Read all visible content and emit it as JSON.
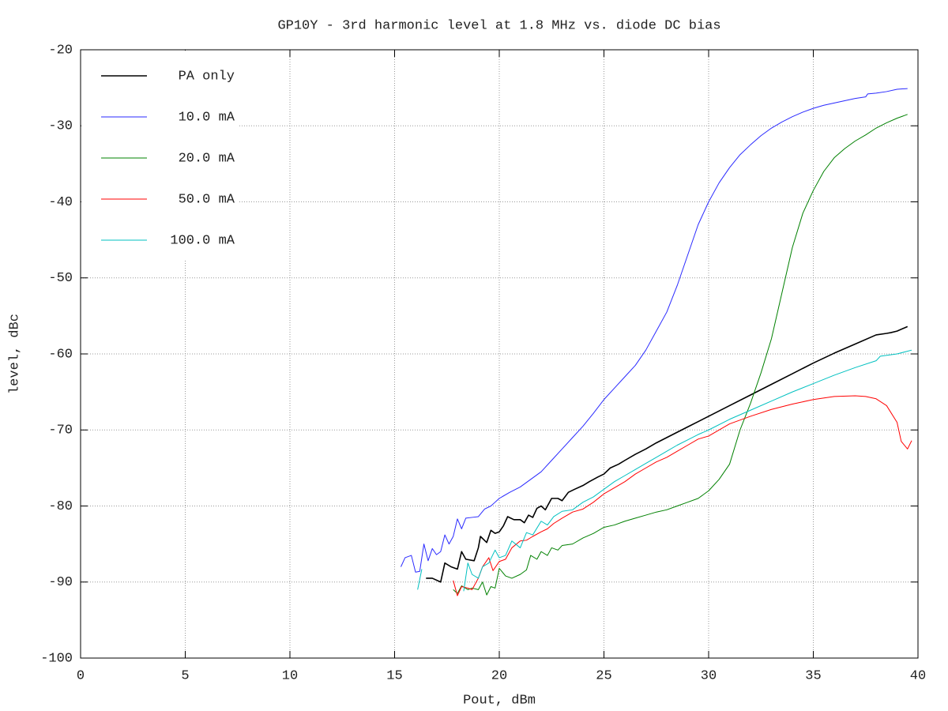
{
  "chart_data": {
    "type": "line",
    "title": "GP10Y - 3rd harmonic level at 1.8 MHz vs. diode DC bias",
    "x_label": "Pout, dBm",
    "y_label": "level, dBc",
    "xlim": [
      0,
      40
    ],
    "xticks": [
      0,
      5,
      10,
      15,
      20,
      25,
      30,
      35,
      40
    ],
    "ylim": [
      -100,
      -20
    ],
    "yticks": [
      -100,
      -90,
      -80,
      -70,
      -60,
      -50,
      -40,
      -30,
      -20
    ],
    "grid": true,
    "legend": "top-left",
    "series": [
      {
        "name": "PA only",
        "color": "#000000",
        "x": [
          16.5,
          16.8,
          17.2,
          17.4,
          17.7,
          18,
          18.2,
          18.4,
          18.8,
          19,
          19.1,
          19.4,
          19.6,
          19.8,
          20,
          20.2,
          20.4,
          20.7,
          21,
          21.2,
          21.4,
          21.6,
          21.8,
          22,
          22.2,
          22.5,
          22.8,
          23,
          23.3,
          23.6,
          24,
          24.3,
          24.7,
          25,
          25.3,
          25.7,
          26,
          26.5,
          27,
          27.5,
          28,
          28.5,
          29,
          29.5,
          30,
          31,
          32,
          33,
          34,
          35,
          36,
          37,
          38,
          38.5,
          38.7,
          39,
          39.5
        ],
        "values": [
          -89.5,
          -89.5,
          -90,
          -87.5,
          -88,
          -88.3,
          -86,
          -87,
          -87.2,
          -85.5,
          -84,
          -84.8,
          -83.2,
          -83.6,
          -83.4,
          -82.6,
          -81.4,
          -81.8,
          -81.8,
          -82.2,
          -81.2,
          -81.5,
          -80.3,
          -80,
          -80.5,
          -79,
          -79,
          -79.3,
          -78.2,
          -77.8,
          -77.3,
          -76.8,
          -76.2,
          -75.8,
          -75,
          -74.5,
          -74,
          -73.2,
          -72.5,
          -71.7,
          -71,
          -70.3,
          -69.6,
          -68.9,
          -68.2,
          -66.8,
          -65.4,
          -64,
          -62.6,
          -61.2,
          -59.9,
          -58.7,
          -57.5,
          -57.3,
          -57.2,
          -57,
          -56.4
        ]
      },
      {
        "name": "10.0 mA",
        "color": "#2a2aff",
        "x": [
          15.3,
          15.5,
          15.8,
          16,
          16.2,
          16.4,
          16.6,
          16.8,
          17,
          17.2,
          17.4,
          17.6,
          17.8,
          18,
          18.2,
          18.4,
          18.7,
          19,
          19.3,
          19.6,
          19.8,
          20,
          20.5,
          21,
          21.5,
          22,
          22.5,
          23,
          23.5,
          24,
          24.5,
          25,
          25.5,
          26,
          26.5,
          27,
          27.5,
          28,
          28.5,
          29,
          29.5,
          30,
          30.5,
          31,
          31.5,
          32,
          32.5,
          33,
          33.5,
          34,
          34.5,
          35,
          35.5,
          36,
          36.5,
          37,
          37.5,
          37.6,
          38,
          38.5,
          39,
          39.5
        ],
        "values": [
          -88,
          -86.8,
          -86.5,
          -88.7,
          -88.6,
          -85,
          -87.2,
          -85.6,
          -86.4,
          -86,
          -83.8,
          -85,
          -84,
          -81.7,
          -83,
          -81.6,
          -81.5,
          -81.4,
          -80.4,
          -80,
          -79.5,
          -79,
          -78.2,
          -77.5,
          -76.5,
          -75.5,
          -74,
          -72.5,
          -71,
          -69.5,
          -67.8,
          -66,
          -64.5,
          -63,
          -61.5,
          -59.5,
          -57,
          -54.5,
          -51,
          -47,
          -43,
          -40,
          -37.5,
          -35.5,
          -33.8,
          -32.5,
          -31.3,
          -30.3,
          -29.5,
          -28.8,
          -28.2,
          -27.7,
          -27.3,
          -27,
          -26.7,
          -26.4,
          -26.2,
          -25.8,
          -25.7,
          -25.5,
          -25.2,
          -25.1
        ]
      },
      {
        "name": "20.0 mA",
        "color": "#008000",
        "x": [
          17.8,
          18,
          18.2,
          18.5,
          18.7,
          19,
          19.2,
          19.4,
          19.6,
          19.8,
          20,
          20.3,
          20.6,
          21,
          21.3,
          21.5,
          21.8,
          22,
          22.3,
          22.5,
          22.8,
          23,
          23.5,
          24,
          24.5,
          25,
          25.5,
          26,
          26.5,
          27,
          27.5,
          28,
          28.5,
          29,
          29.5,
          30,
          30.5,
          31,
          31.5,
          32,
          32.5,
          33,
          33.5,
          34,
          34.5,
          35,
          35.5,
          36,
          36.5,
          37,
          37.5,
          38,
          38.5,
          39,
          39.5
        ],
        "values": [
          -91,
          -91.5,
          -90.5,
          -91,
          -90.8,
          -91,
          -90,
          -91.7,
          -90.6,
          -90.8,
          -88.2,
          -89.2,
          -89.5,
          -89,
          -88.4,
          -86.5,
          -87,
          -86,
          -86.5,
          -85.5,
          -85.8,
          -85.2,
          -85,
          -84.2,
          -83.6,
          -82.8,
          -82.5,
          -82,
          -81.6,
          -81.2,
          -80.8,
          -80.5,
          -80,
          -79.5,
          -79,
          -78,
          -76.5,
          -74.5,
          -70,
          -66.5,
          -62.5,
          -58,
          -52,
          -46,
          -41.5,
          -38.5,
          -36,
          -34.2,
          -33,
          -32,
          -31.2,
          -30.3,
          -29.6,
          -29,
          -28.5
        ]
      },
      {
        "name": "50.0 mA",
        "color": "#ff0000",
        "x": [
          17.8,
          18,
          18.2,
          18.5,
          18.7,
          19,
          19.2,
          19.5,
          19.7,
          20,
          20.3,
          20.6,
          21,
          21.3,
          21.6,
          22,
          22.3,
          22.6,
          23,
          23.5,
          24,
          24.5,
          25,
          25.5,
          26,
          26.5,
          27,
          27.5,
          28,
          28.5,
          29,
          29.5,
          30,
          31,
          32,
          33,
          34,
          35,
          36,
          37,
          37.5,
          38,
          38.5,
          39,
          39.2,
          39.5,
          39.7
        ],
        "values": [
          -89.8,
          -91.8,
          -90.6,
          -90.8,
          -91,
          -89.5,
          -88,
          -86.8,
          -88.5,
          -87.3,
          -87,
          -85.5,
          -84.6,
          -84.5,
          -84,
          -83.4,
          -83,
          -82.3,
          -81.6,
          -80.8,
          -80.4,
          -79.5,
          -78.4,
          -77.6,
          -76.8,
          -75.8,
          -75,
          -74.2,
          -73.6,
          -72.8,
          -72,
          -71.2,
          -70.8,
          -69.2,
          -68.2,
          -67.3,
          -66.6,
          -66,
          -65.6,
          -65.5,
          -65.6,
          -65.9,
          -66.8,
          -69,
          -71.5,
          -72.5,
          -71.4
        ]
      },
      {
        "name": "100.0 mA",
        "color": "#00c0c0",
        "x": [
          16.1,
          16.3,
          17.5,
          18.3,
          18.5,
          18.7,
          19,
          19.2,
          19.5,
          19.8,
          20,
          20.3,
          20.6,
          21,
          21.3,
          21.6,
          22,
          22.3,
          22.6,
          23,
          23.5,
          24,
          24.5,
          25,
          25.5,
          26,
          26.5,
          27,
          27.5,
          28,
          28.5,
          29,
          29.5,
          30,
          31,
          32,
          33,
          34,
          35,
          36,
          37,
          38,
          38.2,
          39,
          39.7
        ],
        "values": [
          -91,
          -88.3,
          null,
          -91.2,
          -87.5,
          -89,
          -89.5,
          -88,
          -87.5,
          -85.8,
          -86.8,
          -86.5,
          -84.6,
          -85.5,
          -83.5,
          -83.8,
          -82,
          -82.5,
          -81.4,
          -80.7,
          -80.5,
          -79.5,
          -78.8,
          -77.8,
          -76.8,
          -76,
          -75.2,
          -74.4,
          -73.6,
          -72.8,
          -72,
          -71.3,
          -70.6,
          -70,
          -68.6,
          -67.4,
          -66.2,
          -65,
          -63.9,
          -62.8,
          -61.8,
          -60.9,
          -60.3,
          -60,
          -59.5
        ]
      }
    ]
  }
}
